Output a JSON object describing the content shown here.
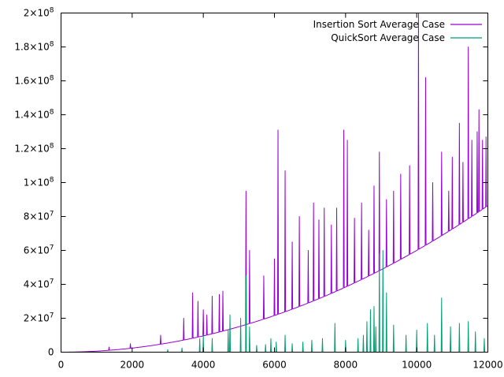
{
  "chart_data": {
    "type": "line",
    "title": "",
    "xlabel": "",
    "ylabel": "",
    "xlim": [
      0,
      12000
    ],
    "ylim": [
      0,
      200000000
    ],
    "grid": false,
    "legend_position": "top-right",
    "x_ticks": [
      {
        "value": 0,
        "label": "0"
      },
      {
        "value": 2000,
        "label": "2000"
      },
      {
        "value": 4000,
        "label": "4000"
      },
      {
        "value": 6000,
        "label": "6000"
      },
      {
        "value": 8000,
        "label": "8000"
      },
      {
        "value": 10000,
        "label": "10000"
      },
      {
        "value": 12000,
        "label": "12000"
      }
    ],
    "y_ticks": [
      {
        "value": 0,
        "mant": "0",
        "exp": ""
      },
      {
        "value": 20000000,
        "mant": "2×10",
        "exp": "7"
      },
      {
        "value": 40000000,
        "mant": "4×10",
        "exp": "7"
      },
      {
        "value": 60000000,
        "mant": "6×10",
        "exp": "7"
      },
      {
        "value": 80000000,
        "mant": "8×10",
        "exp": "7"
      },
      {
        "value": 100000000,
        "mant": "1×10",
        "exp": "8"
      },
      {
        "value": 120000000,
        "mant": "1.2×10",
        "exp": "8"
      },
      {
        "value": 140000000,
        "mant": "1.4×10",
        "exp": "8"
      },
      {
        "value": 160000000,
        "mant": "1.6×10",
        "exp": "8"
      },
      {
        "value": 180000000,
        "mant": "1.8×10",
        "exp": "8"
      },
      {
        "value": 200000000,
        "mant": "2×10",
        "exp": "8"
      }
    ],
    "series": [
      {
        "name": "Insertion Sort Average Case",
        "color": "#9400d3",
        "base_coefficient": 0.6,
        "base_exponent": 2,
        "spikes": [
          [
            1350,
            3000000
          ],
          [
            1950,
            5000000
          ],
          [
            2800,
            10000000
          ],
          [
            3450,
            20000000
          ],
          [
            3700,
            35000000
          ],
          [
            3850,
            30000000
          ],
          [
            4000,
            25000000
          ],
          [
            4100,
            22000000
          ],
          [
            4250,
            33000000
          ],
          [
            4450,
            34000000
          ],
          [
            4550,
            36000000
          ],
          [
            5200,
            95000000
          ],
          [
            5300,
            60000000
          ],
          [
            5700,
            45000000
          ],
          [
            6000,
            55000000
          ],
          [
            6100,
            131000000
          ],
          [
            6300,
            107000000
          ],
          [
            6500,
            65000000
          ],
          [
            6700,
            80000000
          ],
          [
            6950,
            60000000
          ],
          [
            7100,
            88000000
          ],
          [
            7250,
            78000000
          ],
          [
            7400,
            85000000
          ],
          [
            7600,
            75000000
          ],
          [
            7750,
            85000000
          ],
          [
            7950,
            131000000
          ],
          [
            8050,
            125000000
          ],
          [
            8250,
            79000000
          ],
          [
            8450,
            88000000
          ],
          [
            8650,
            72000000
          ],
          [
            8800,
            98000000
          ],
          [
            8950,
            118000000
          ],
          [
            9150,
            90000000
          ],
          [
            9350,
            95000000
          ],
          [
            9550,
            105000000
          ],
          [
            9800,
            110000000
          ],
          [
            10050,
            200000000
          ],
          [
            10250,
            162000000
          ],
          [
            10450,
            100000000
          ],
          [
            10700,
            118000000
          ],
          [
            10900,
            95000000
          ],
          [
            11000,
            115000000
          ],
          [
            11200,
            135000000
          ],
          [
            11300,
            112000000
          ],
          [
            11450,
            180000000
          ],
          [
            11550,
            125000000
          ],
          [
            11700,
            130000000
          ],
          [
            11750,
            143000000
          ],
          [
            11850,
            125000000
          ],
          [
            11950,
            127000000
          ]
        ]
      },
      {
        "name": "QuickSort Average Case",
        "color": "#009e73",
        "base_coefficient": 2.5e-05,
        "base_exponent": 2,
        "spikes": [
          [
            3000,
            1500000
          ],
          [
            3400,
            2500000
          ],
          [
            3900,
            8000000
          ],
          [
            4000,
            10000000
          ],
          [
            4250,
            8000000
          ],
          [
            4700,
            13000000
          ],
          [
            4750,
            22000000
          ],
          [
            5050,
            20000000
          ],
          [
            5200,
            45000000
          ],
          [
            5300,
            15000000
          ],
          [
            5500,
            4000000
          ],
          [
            5750,
            4500000
          ],
          [
            5900,
            8000000
          ],
          [
            6050,
            6000000
          ],
          [
            6300,
            10000000
          ],
          [
            6500,
            5000000
          ],
          [
            6800,
            6000000
          ],
          [
            7050,
            7000000
          ],
          [
            7350,
            8000000
          ],
          [
            7700,
            17000000
          ],
          [
            8000,
            7000000
          ],
          [
            8350,
            8000000
          ],
          [
            8500,
            10000000
          ],
          [
            8600,
            18000000
          ],
          [
            8700,
            25000000
          ],
          [
            8800,
            27000000
          ],
          [
            8850,
            15000000
          ],
          [
            8950,
            58000000
          ],
          [
            9050,
            60000000
          ],
          [
            9150,
            35000000
          ],
          [
            9350,
            16000000
          ],
          [
            9700,
            10000000
          ],
          [
            10000,
            13000000
          ],
          [
            10300,
            17000000
          ],
          [
            10500,
            10000000
          ],
          [
            10700,
            32000000
          ],
          [
            10950,
            15000000
          ],
          [
            11200,
            17000000
          ],
          [
            11450,
            18000000
          ],
          [
            11650,
            12000000
          ],
          [
            11900,
            8000000
          ]
        ]
      }
    ]
  }
}
